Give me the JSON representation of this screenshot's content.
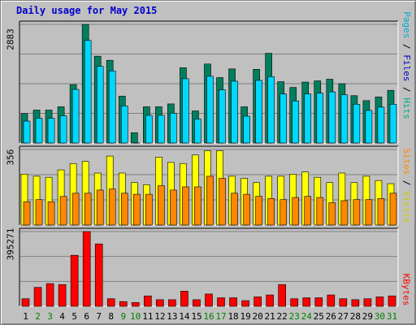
{
  "title": "Daily usage for May 2015",
  "colors": {
    "hits": "#007f5f",
    "files": "#00d8ff",
    "visits": "#ffff00",
    "sites": "#ff8800",
    "kbytes": "#ff0000",
    "weekend_day": "#007f00",
    "weekday": "#000000",
    "label_hits": "#00aa88",
    "label_files": "#0000cc",
    "label_pages": "#00aacc",
    "label_visits": "#cccc00",
    "label_sites": "#ff8800",
    "label_kbytes": "#ff0000"
  },
  "right_labels": {
    "top": [
      {
        "text": "Pages",
        "color": "#00aacc"
      },
      {
        "text": " / ",
        "color": "#000000"
      },
      {
        "text": "Files",
        "color": "#0000cc"
      },
      {
        "text": " / ",
        "color": "#000000"
      },
      {
        "text": "Hits",
        "color": "#00aa88"
      }
    ],
    "middle": [
      {
        "text": "Sites",
        "color": "#ff8800"
      },
      {
        "text": " / ",
        "color": "#000000"
      },
      {
        "text": "Visits",
        "color": "#cccc00"
      }
    ],
    "bottom": [
      {
        "text": "KBytes",
        "color": "#ff0000"
      }
    ]
  },
  "chart_data": {
    "type": "bar",
    "categories": [
      "1",
      "2",
      "3",
      "4",
      "5",
      "6",
      "7",
      "8",
      "9",
      "10",
      "11",
      "12",
      "13",
      "14",
      "15",
      "16",
      "17",
      "18",
      "19",
      "20",
      "21",
      "22",
      "23",
      "24",
      "25",
      "26",
      "27",
      "28",
      "29",
      "30",
      "31"
    ],
    "weekend_days": [
      "2",
      "3",
      "9",
      "10",
      "16",
      "17",
      "23",
      "24",
      "30",
      "31"
    ],
    "panels": [
      {
        "ymax": 2883,
        "ymax_label": "2883",
        "series": [
          {
            "name": "Hits",
            "values": [
              715,
              800,
              800,
              880,
              1420,
              2883,
              2110,
              2010,
              1140,
              250,
              880,
              880,
              950,
              1830,
              780,
              1920,
              1590,
              1800,
              880,
              1790,
              2180,
              1490,
              1350,
              1480,
              1510,
              1550,
              1440,
              1150,
              1030,
              1120,
              1280
            ]
          },
          {
            "name": "Files",
            "values": [
              690,
              760,
              760,
              820,
              1460,
              2650,
              2020,
              1910,
              1060,
              160,
              830,
              830,
              880,
              1720,
              740,
              1780,
              1450,
              1660,
              810,
              1680,
              1770,
              1350,
              1180,
              1350,
              1370,
              1400,
              1330,
              1100,
              950,
              1030,
              1100
            ]
          }
        ]
      },
      {
        "ymax": 356,
        "ymax_label": "356",
        "series": [
          {
            "name": "Visits",
            "values": [
              240,
              230,
              225,
              260,
              290,
              300,
              245,
              325,
              245,
              200,
              190,
              320,
              295,
              290,
              330,
              350,
              350,
              230,
              220,
              200,
              230,
              230,
              240,
              250,
              225,
              200,
              245,
              200,
              230,
              210,
              195
            ]
          },
          {
            "name": "Sites",
            "values": [
              110,
              120,
              110,
              135,
              150,
              150,
              165,
              170,
              150,
              145,
              145,
              185,
              165,
              180,
              180,
              230,
              220,
              150,
              145,
              135,
              125,
              120,
              130,
              135,
              130,
              105,
              115,
              120,
              120,
              125,
              150
            ]
          }
        ]
      },
      {
        "ymax": 395271,
        "ymax_label": "395271",
        "series": [
          {
            "name": "KBytes",
            "values": [
              40000,
              100000,
              120000,
              115000,
              270000,
              395271,
              330000,
              40000,
              25000,
              20000,
              55000,
              35000,
              35000,
              80000,
              35000,
              65000,
              45000,
              45000,
              30000,
              50000,
              60000,
              115000,
              40000,
              45000,
              45000,
              60000,
              40000,
              35000,
              40000,
              50000,
              55000
            ]
          }
        ]
      }
    ]
  }
}
